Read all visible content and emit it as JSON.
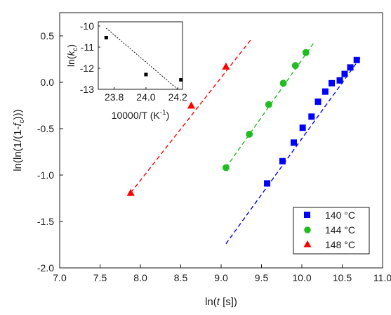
{
  "chart_data": [
    {
      "type": "scatter",
      "xlabel_parts": {
        "pre": "ln(",
        "italic": "t",
        "post": " [s])"
      },
      "ylabel_parts": {
        "pre": "ln(ln(1/(1-",
        "italic": "f",
        "sub": "c",
        "post": ")))"
      },
      "xlim": [
        7.0,
        11.0
      ],
      "ylim": [
        -2.0,
        0.75
      ],
      "xticks": [
        "7.0",
        "7.5",
        "8.0",
        "8.5",
        "9.0",
        "9.5",
        "10.0",
        "10.5",
        "11.0"
      ],
      "yticks": [
        "-2.0",
        "-1.5",
        "-1.0",
        "-0.5",
        "0.0",
        "0.5"
      ],
      "grid": false,
      "legend_position": "bottom-right",
      "series": [
        {
          "name": "140 °C",
          "color": "#0000ff",
          "marker": "square",
          "x": [
            9.57,
            9.76,
            9.9,
            10.01,
            10.12,
            10.2,
            10.29,
            10.37,
            10.47,
            10.53,
            10.6,
            10.68
          ],
          "y": [
            -1.09,
            -0.85,
            -0.65,
            -0.49,
            -0.37,
            -0.21,
            -0.1,
            -0.01,
            0.02,
            0.09,
            0.16,
            0.24
          ],
          "fit": {
            "x": [
              9.06,
              10.72
            ],
            "y": [
              -1.74,
              0.26
            ]
          }
        },
        {
          "name": "144 °C",
          "color": "#22bb22",
          "marker": "circle",
          "x": [
            9.06,
            9.35,
            9.59,
            9.77,
            9.92,
            10.05
          ],
          "y": [
            -0.92,
            -0.56,
            -0.24,
            -0.01,
            0.18,
            0.32
          ],
          "fit": {
            "x": [
              9.06,
              10.16
            ],
            "y": [
              -0.92,
              0.44
            ]
          }
        },
        {
          "name": "148 °C",
          "color": "#ff0000",
          "marker": "triangle",
          "x": [
            7.88,
            8.63,
            9.06
          ],
          "y": [
            -1.19,
            -0.25,
            0.17
          ],
          "fit": {
            "x": [
              7.88,
              9.37
            ],
            "y": [
              -1.19,
              0.46
            ]
          }
        }
      ]
    },
    {
      "type": "scatter",
      "xlabel_parts": {
        "pre": "10000/T (K",
        "sup": "-1",
        "post": ")"
      },
      "ylabel_parts": {
        "pre": "ln(",
        "italic": "k",
        "sub": "c",
        "post": ")"
      },
      "xlim": [
        23.7,
        24.23
      ],
      "ylim": [
        -13.0,
        -9.8
      ],
      "xticks": [
        "23.8",
        "24.0",
        "24.2"
      ],
      "yticks": [
        "-10",
        "-11",
        "-12",
        "-13"
      ],
      "series": [
        {
          "color": "#000000",
          "marker": "square",
          "x": [
            23.75,
            24.0,
            24.22
          ],
          "y": [
            -10.55,
            -12.3,
            -12.55
          ],
          "fit": {
            "x": [
              23.75,
              24.2
            ],
            "y": [
              -10.1,
              -13.0
            ]
          }
        }
      ]
    }
  ]
}
